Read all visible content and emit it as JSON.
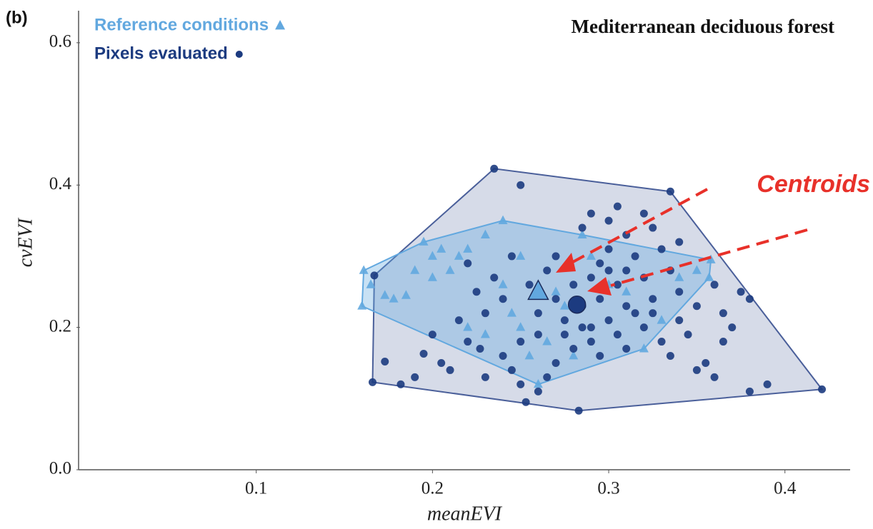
{
  "chart_data": {
    "type": "scatter",
    "panel_label": "(b)",
    "title": "Mediterranean deciduous forest",
    "x_label": "meanEVI",
    "y_label": "cvEVI",
    "annotation": "Centroids",
    "xlim": [
      0,
      0.437
    ],
    "ylim": [
      0,
      0.645
    ],
    "xticks": [
      0.1,
      0.2,
      0.3,
      0.4
    ],
    "yticks": [
      {
        "value": 0,
        "label": "0.0"
      },
      0.2,
      0.4,
      0.6
    ],
    "series": [
      {
        "name": "Reference conditions",
        "color": "#62a8df",
        "marker": "triangle",
        "x": [
          0.161,
          0.16,
          0.165,
          0.173,
          0.178,
          0.185,
          0.195,
          0.2,
          0.205,
          0.21,
          0.215,
          0.22,
          0.23,
          0.24,
          0.25,
          0.24,
          0.245,
          0.25,
          0.255,
          0.26,
          0.265,
          0.27,
          0.275,
          0.28,
          0.285,
          0.29,
          0.3,
          0.31,
          0.32,
          0.33,
          0.34,
          0.35,
          0.358,
          0.357,
          0.22,
          0.23,
          0.2,
          0.19
        ],
        "values": [
          0.28,
          0.23,
          0.26,
          0.245,
          0.24,
          0.245,
          0.32,
          0.3,
          0.31,
          0.28,
          0.3,
          0.31,
          0.33,
          0.35,
          0.3,
          0.26,
          0.22,
          0.2,
          0.16,
          0.12,
          0.18,
          0.25,
          0.23,
          0.16,
          0.33,
          0.3,
          0.26,
          0.25,
          0.17,
          0.21,
          0.27,
          0.28,
          0.295,
          0.27,
          0.2,
          0.19,
          0.27,
          0.28
        ],
        "centroid": {
          "x": 0.26,
          "y": 0.25
        }
      },
      {
        "name": "Pixels evaluated",
        "color": "#1c3b80",
        "marker": "circle",
        "x": [
          0.167,
          0.235,
          0.335,
          0.421,
          0.283,
          0.166,
          0.173,
          0.182,
          0.19,
          0.195,
          0.205,
          0.21,
          0.22,
          0.227,
          0.23,
          0.24,
          0.245,
          0.25,
          0.253,
          0.26,
          0.265,
          0.27,
          0.275,
          0.28,
          0.285,
          0.29,
          0.295,
          0.3,
          0.305,
          0.31,
          0.315,
          0.32,
          0.325,
          0.33,
          0.335,
          0.34,
          0.345,
          0.35,
          0.355,
          0.36,
          0.37,
          0.375,
          0.38,
          0.38,
          0.39,
          0.365,
          0.25,
          0.29,
          0.285,
          0.3,
          0.305,
          0.31,
          0.32,
          0.325,
          0.33,
          0.34,
          0.335,
          0.315,
          0.3,
          0.295,
          0.29,
          0.28,
          0.27,
          0.265,
          0.255,
          0.245,
          0.24,
          0.235,
          0.23,
          0.225,
          0.22,
          0.215,
          0.26,
          0.27,
          0.275,
          0.285,
          0.295,
          0.305,
          0.31,
          0.32,
          0.325,
          0.34,
          0.35,
          0.36,
          0.365,
          0.3,
          0.31,
          0.29,
          0.26,
          0.25,
          0.2
        ],
        "values": [
          0.273,
          0.423,
          0.391,
          0.113,
          0.083,
          0.123,
          0.152,
          0.12,
          0.13,
          0.163,
          0.15,
          0.14,
          0.18,
          0.17,
          0.13,
          0.16,
          0.14,
          0.12,
          0.095,
          0.11,
          0.13,
          0.15,
          0.19,
          0.17,
          0.2,
          0.18,
          0.16,
          0.21,
          0.19,
          0.17,
          0.22,
          0.2,
          0.24,
          0.18,
          0.16,
          0.21,
          0.19,
          0.14,
          0.15,
          0.13,
          0.2,
          0.25,
          0.24,
          0.11,
          0.12,
          0.18,
          0.4,
          0.36,
          0.34,
          0.35,
          0.37,
          0.33,
          0.36,
          0.34,
          0.31,
          0.32,
          0.28,
          0.3,
          0.31,
          0.29,
          0.27,
          0.26,
          0.3,
          0.28,
          0.26,
          0.3,
          0.24,
          0.27,
          0.22,
          0.25,
          0.29,
          0.21,
          0.22,
          0.24,
          0.21,
          0.23,
          0.24,
          0.26,
          0.23,
          0.27,
          0.22,
          0.25,
          0.23,
          0.26,
          0.22,
          0.28,
          0.28,
          0.2,
          0.19,
          0.18,
          0.19
        ],
        "centroid": {
          "x": 0.282,
          "y": 0.232
        }
      }
    ]
  }
}
